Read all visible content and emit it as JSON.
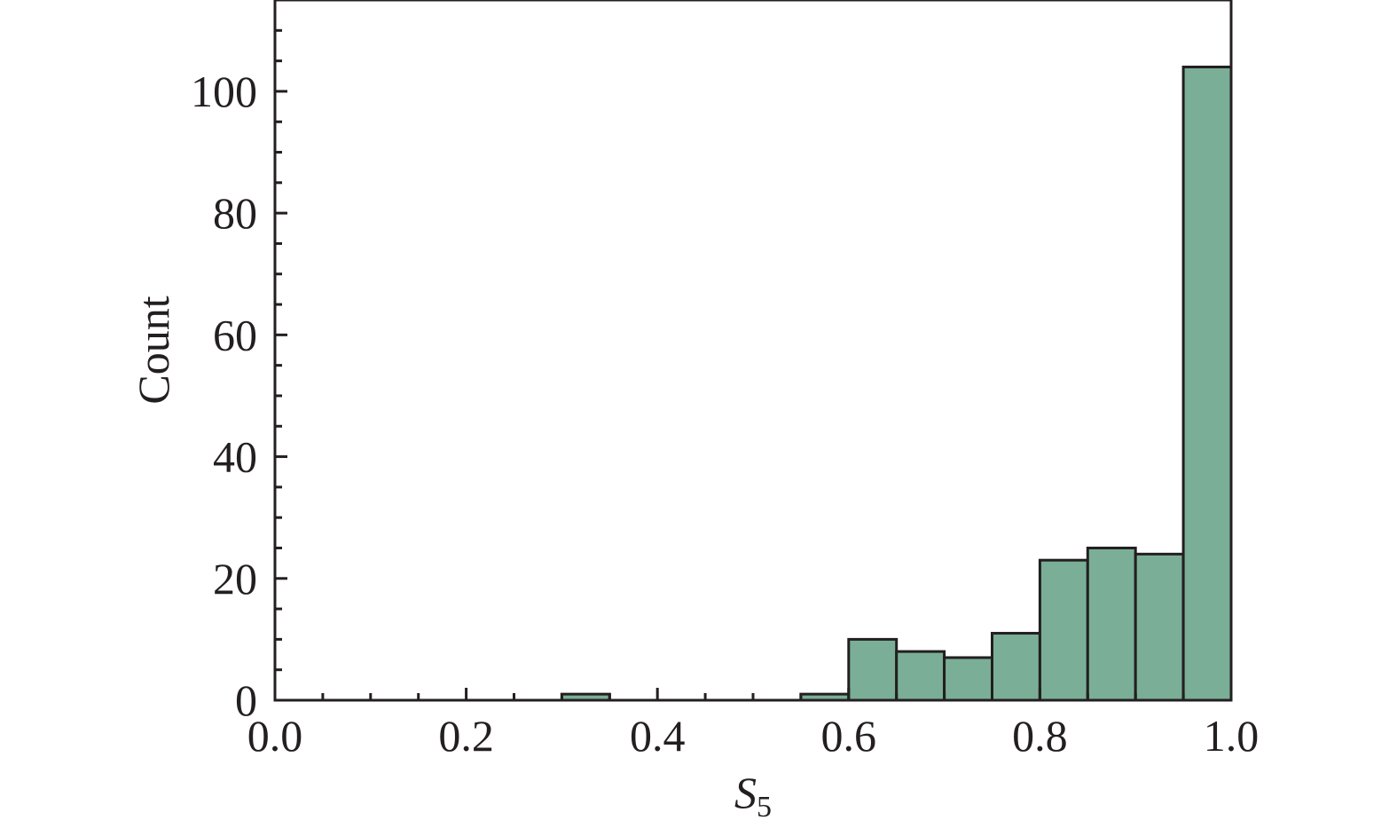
{
  "chart_data": {
    "type": "bar",
    "histogram": true,
    "bin_edges": [
      0.3,
      0.35,
      0.55,
      0.6,
      0.65,
      0.7,
      0.75,
      0.8,
      0.85,
      0.9,
      0.95,
      1.0
    ],
    "bins": [
      {
        "x0": 0.3,
        "x1": 0.35,
        "count": 1
      },
      {
        "x0": 0.55,
        "x1": 0.6,
        "count": 1
      },
      {
        "x0": 0.6,
        "x1": 0.65,
        "count": 10
      },
      {
        "x0": 0.65,
        "x1": 0.7,
        "count": 8
      },
      {
        "x0": 0.7,
        "x1": 0.75,
        "count": 7
      },
      {
        "x0": 0.75,
        "x1": 0.8,
        "count": 11
      },
      {
        "x0": 0.8,
        "x1": 0.85,
        "count": 23
      },
      {
        "x0": 0.85,
        "x1": 0.9,
        "count": 25
      },
      {
        "x0": 0.9,
        "x1": 0.95,
        "count": 24
      },
      {
        "x0": 0.95,
        "x1": 1.0,
        "count": 104
      }
    ],
    "title": "",
    "xlabel": "S",
    "xlabel_subscript": "5",
    "ylabel": "Count",
    "xlim": [
      0.0,
      1.0
    ],
    "ylim": [
      0,
      115
    ],
    "x_ticks": [
      "0.0",
      "0.2",
      "0.4",
      "0.6",
      "0.8",
      "1.0"
    ],
    "y_ticks": [
      "0",
      "20",
      "40",
      "60",
      "80",
      "100"
    ],
    "grid": false,
    "legend": "none",
    "bar_color": "#7aae97",
    "edge_color": "#231f20"
  }
}
